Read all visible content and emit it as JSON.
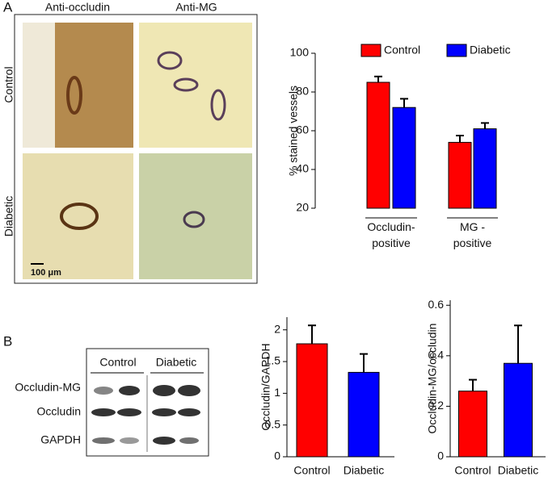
{
  "panels": {
    "a": {
      "label": "A",
      "columns": [
        "Anti-occludin",
        "Anti-MG"
      ],
      "rows": [
        "Control",
        "Diabetic"
      ],
      "scale_bar": "100 μm"
    },
    "b": {
      "label": "B",
      "blot_groups": [
        "Control",
        "Diabetic"
      ],
      "blot_rows": [
        "Occludin-MG",
        "Occludin",
        "GAPDH"
      ]
    }
  },
  "chart_data": [
    {
      "type": "bar",
      "y_label": "% stained vessels",
      "categories": [
        "Occludin-\npositive",
        "MG -\npositive"
      ],
      "series": [
        {
          "name": "Control",
          "color": "#ff0000",
          "values": [
            85,
            54
          ],
          "errors": [
            3,
            3.5
          ]
        },
        {
          "name": "Diabetic",
          "color": "#0000ff",
          "values": [
            72,
            61
          ],
          "errors": [
            4.5,
            3
          ]
        }
      ],
      "ylim": [
        20,
        100
      ],
      "yticks": [
        20,
        40,
        60,
        80,
        100
      ]
    },
    {
      "type": "bar",
      "y_label": "Occludin/GAPDH",
      "categories": [
        "Control",
        "Diabetic"
      ],
      "values": [
        1.78,
        1.33
      ],
      "errors": [
        0.29,
        0.29
      ],
      "colors": [
        "#ff0000",
        "#0000ff"
      ],
      "ylim": [
        0,
        2.2
      ],
      "yticks": [
        0,
        0.5,
        1,
        1.5,
        2
      ]
    },
    {
      "type": "bar",
      "y_label": "Occludin-MG/occludin",
      "categories": [
        "Control",
        "Diabetic"
      ],
      "values": [
        0.26,
        0.37
      ],
      "errors": [
        0.045,
        0.15
      ],
      "colors": [
        "#ff0000",
        "#0000ff"
      ],
      "ylim": [
        0,
        0.62
      ],
      "yticks": [
        0,
        0.2,
        0.4,
        0.6
      ]
    }
  ]
}
